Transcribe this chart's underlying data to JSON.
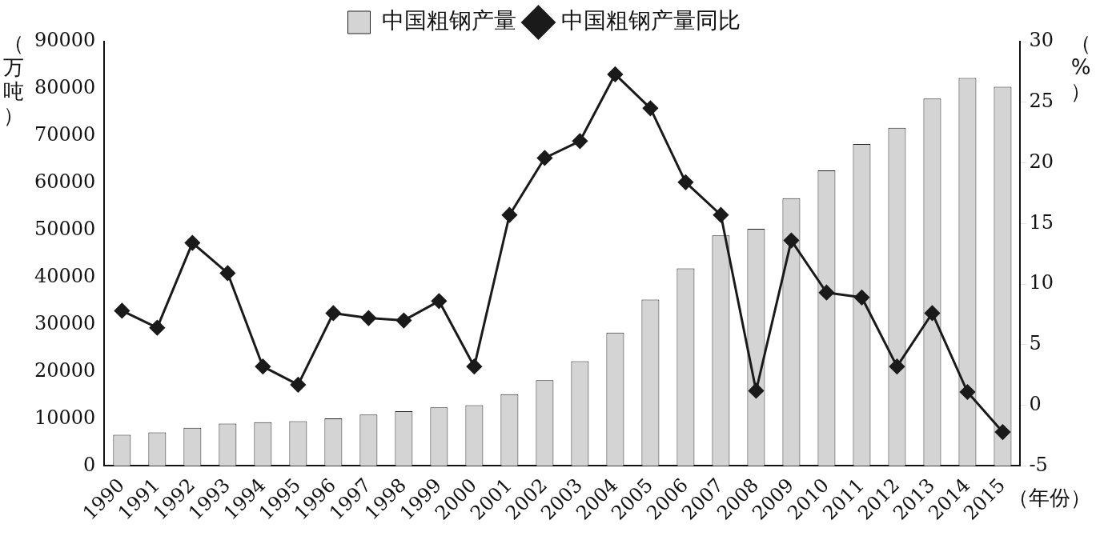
{
  "chart_data": {
    "type": "bar",
    "ylabel": "（万吨）",
    "y2label": "（%）",
    "xlabel": "（年份）",
    "categories": [
      "1990",
      "1991",
      "1992",
      "1993",
      "1994",
      "1995",
      "1996",
      "1997",
      "1998",
      "1999",
      "2000",
      "2001",
      "2002",
      "2003",
      "2004",
      "2005",
      "2006",
      "2007",
      "2008",
      "2009",
      "2010",
      "2011",
      "2012",
      "2013",
      "2014",
      "2015"
    ],
    "series": [
      {
        "name": "中国粗钢产量",
        "color": "#d4d4d4",
        "values": [
          6600,
          7100,
          8100,
          9000,
          9300,
          9500,
          10100,
          10900,
          11600,
          12400,
          12900,
          15200,
          18200,
          22200,
          28300,
          35300,
          41900,
          48900,
          50300,
          56800,
          62700,
          68300,
          71700,
          77900,
          82300,
          80400
        ]
      },
      {
        "name": "中国粗钢产量同比",
        "type": "line",
        "axis": "y2",
        "color": "#1a1a1a",
        "marker": "diamond",
        "line_style": "solid",
        "values": [
          7.8,
          6.4,
          13.4,
          10.9,
          3.2,
          1.7,
          7.6,
          7.2,
          7.0,
          8.6,
          3.2,
          15.7,
          20.4,
          21.8,
          27.3,
          24.5,
          18.4,
          15.7,
          1.2,
          13.6,
          9.3,
          8.9,
          3.2,
          7.6,
          1.1,
          -2.2
        ]
      }
    ],
    "ylim": [
      0,
      90000
    ],
    "yticks": [
      0,
      10000,
      20000,
      30000,
      40000,
      50000,
      60000,
      70000,
      80000,
      90000
    ],
    "y2lim": [
      -5,
      30
    ],
    "y2ticks": [
      -5,
      0,
      5,
      10,
      15,
      20,
      25,
      30
    ],
    "legend": "top",
    "grid": false
  }
}
